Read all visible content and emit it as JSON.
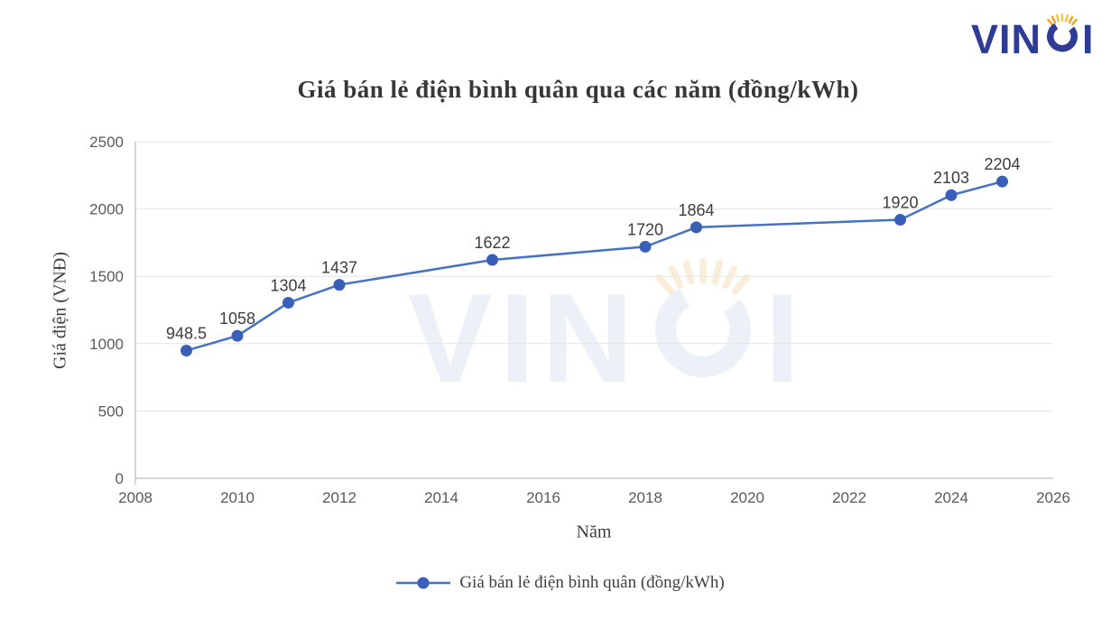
{
  "page": {
    "background": "#FFFFFF"
  },
  "logo": {
    "part_before_c": "VIN",
    "part_after_c": "I",
    "brand_blue": "#2E3C96",
    "brand_orange": "#F6A11F"
  },
  "watermark": {
    "part_before_c": "VIN",
    "part_after_c": "I"
  },
  "chart_data": {
    "type": "line",
    "title": "Giá bán lẻ điện bình quân qua các năm (đồng/kWh)",
    "xlabel": "Năm",
    "ylabel": "Giá điện (VNĐ)",
    "legend_label": "Giá bán lẻ điện bình quân (đồng/kWh)",
    "legend_position": "bottom",
    "grid": true,
    "x": [
      2009,
      2010,
      2011,
      2012,
      2015,
      2018,
      2019,
      2023,
      2024,
      2025
    ],
    "values": [
      948.5,
      1058,
      1304,
      1437,
      1622,
      1720,
      1864,
      1920,
      2103,
      2204
    ],
    "xlim": [
      2008,
      2026
    ],
    "ylim": [
      0,
      2500
    ],
    "x_ticks": [
      2008,
      2010,
      2012,
      2014,
      2016,
      2018,
      2020,
      2022,
      2024,
      2026
    ],
    "y_ticks": [
      0,
      500,
      1000,
      1500,
      2000,
      2500
    ],
    "line_color": "#4472C4",
    "marker_color": "#3A5FB8",
    "grid_color": "#E4E4E4",
    "axis_color": "#BFBFBF"
  }
}
